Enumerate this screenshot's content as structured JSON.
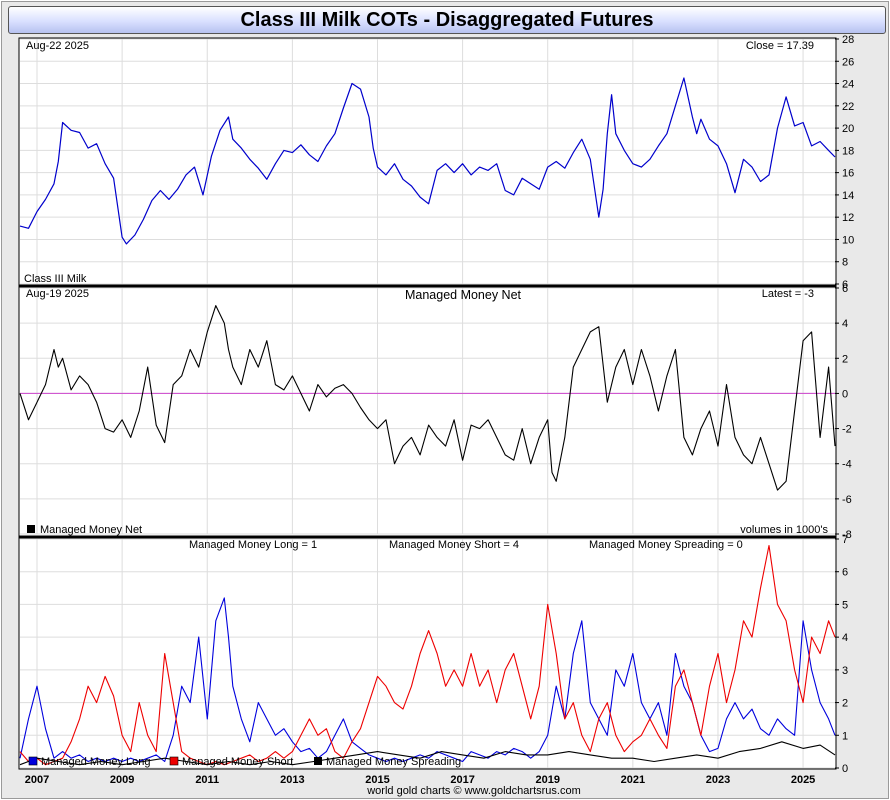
{
  "title": "Class III Milk COTs - Disaggregated Futures",
  "footer": "world gold charts © www.goldchartsrus.com",
  "colors": {
    "long": "#0000dd",
    "short": "#ee0000",
    "spreading": "#000000",
    "price": "#0000cc",
    "net": "#000000",
    "zero_line": "#cc44cc",
    "grid": "#dddddd"
  },
  "x_axis": {
    "labels": [
      "2007",
      "2009",
      "2011",
      "2013",
      "2015",
      "2017",
      "2019",
      "2021",
      "2023",
      "2025"
    ],
    "range": [
      2006.6,
      2025.75
    ]
  },
  "chart_data": [
    {
      "type": "line",
      "name": "price",
      "top_left_label": "Aug-22  2025",
      "top_right_label": "Close = 17.39",
      "legend": "Class III Milk",
      "ylim": [
        6,
        28
      ],
      "yticks": [
        6,
        8,
        10,
        12,
        14,
        16,
        18,
        20,
        22,
        24,
        26,
        28
      ],
      "x": [
        2006.6,
        2006.8,
        2007.0,
        2007.2,
        2007.4,
        2007.5,
        2007.6,
        2007.8,
        2008.0,
        2008.2,
        2008.4,
        2008.6,
        2008.8,
        2009.0,
        2009.1,
        2009.3,
        2009.5,
        2009.7,
        2009.9,
        2010.1,
        2010.3,
        2010.5,
        2010.7,
        2010.9,
        2011.1,
        2011.3,
        2011.5,
        2011.6,
        2011.8,
        2012.0,
        2012.2,
        2012.4,
        2012.6,
        2012.8,
        2013.0,
        2013.2,
        2013.4,
        2013.6,
        2013.8,
        2014.0,
        2014.2,
        2014.4,
        2014.6,
        2014.8,
        2014.9,
        2015.0,
        2015.2,
        2015.4,
        2015.6,
        2015.8,
        2016.0,
        2016.2,
        2016.4,
        2016.6,
        2016.8,
        2017.0,
        2017.2,
        2017.4,
        2017.6,
        2017.8,
        2018.0,
        2018.2,
        2018.4,
        2018.6,
        2018.8,
        2019.0,
        2019.2,
        2019.4,
        2019.6,
        2019.8,
        2020.0,
        2020.2,
        2020.3,
        2020.4,
        2020.5,
        2020.6,
        2020.8,
        2021.0,
        2021.2,
        2021.4,
        2021.6,
        2021.8,
        2022.0,
        2022.2,
        2022.4,
        2022.5,
        2022.6,
        2022.8,
        2023.0,
        2023.2,
        2023.4,
        2023.6,
        2023.8,
        2024.0,
        2024.2,
        2024.4,
        2024.6,
        2024.8,
        2025.0,
        2025.2,
        2025.4,
        2025.6,
        2025.75
      ],
      "values": [
        11.2,
        11.0,
        12.5,
        13.6,
        15.0,
        17.0,
        20.5,
        19.8,
        19.6,
        18.2,
        18.6,
        16.8,
        15.5,
        10.2,
        9.6,
        10.4,
        11.8,
        13.5,
        14.4,
        13.6,
        14.5,
        15.8,
        16.5,
        14.0,
        17.5,
        19.8,
        21.0,
        19.0,
        18.2,
        17.2,
        16.4,
        15.4,
        16.8,
        18.0,
        17.8,
        18.5,
        17.6,
        17.0,
        18.4,
        19.5,
        21.8,
        24.0,
        23.5,
        21.0,
        18.2,
        16.5,
        15.8,
        16.8,
        15.4,
        14.8,
        13.8,
        13.2,
        16.2,
        16.8,
        16.0,
        16.8,
        15.8,
        16.5,
        16.2,
        16.8,
        14.4,
        14.0,
        15.5,
        15.0,
        14.5,
        16.5,
        17.0,
        16.4,
        17.8,
        19.0,
        17.2,
        12.0,
        14.5,
        19.5,
        23.0,
        19.5,
        18.0,
        16.8,
        16.5,
        17.2,
        18.4,
        19.5,
        22.0,
        24.5,
        21.0,
        19.5,
        20.8,
        19.0,
        18.4,
        16.8,
        14.2,
        17.2,
        16.5,
        15.2,
        15.8,
        20.0,
        22.8,
        20.2,
        20.5,
        18.4,
        18.8,
        18.0,
        17.4
      ]
    },
    {
      "type": "line",
      "name": "managed_money_net",
      "title": "Managed Money Net",
      "top_left_label": "Aug-19  2025",
      "top_right_label": "Latest = -3",
      "legend": "Managed Money Net",
      "right_note": "volumes in 1000's",
      "ylim": [
        -8,
        6
      ],
      "yticks": [
        -8,
        -6,
        -4,
        -2,
        0,
        2,
        4,
        6
      ],
      "x": [
        2006.6,
        2006.8,
        2007.0,
        2007.2,
        2007.4,
        2007.5,
        2007.6,
        2007.8,
        2008.0,
        2008.2,
        2008.4,
        2008.6,
        2008.8,
        2009.0,
        2009.2,
        2009.4,
        2009.6,
        2009.8,
        2010.0,
        2010.2,
        2010.4,
        2010.6,
        2010.8,
        2011.0,
        2011.2,
        2011.4,
        2011.5,
        2011.6,
        2011.8,
        2012.0,
        2012.2,
        2012.4,
        2012.6,
        2012.8,
        2013.0,
        2013.2,
        2013.4,
        2013.6,
        2013.8,
        2014.0,
        2014.2,
        2014.4,
        2014.6,
        2014.8,
        2015.0,
        2015.2,
        2015.4,
        2015.6,
        2015.8,
        2016.0,
        2016.2,
        2016.4,
        2016.6,
        2016.8,
        2017.0,
        2017.2,
        2017.4,
        2017.6,
        2017.8,
        2018.0,
        2018.2,
        2018.4,
        2018.6,
        2018.8,
        2019.0,
        2019.1,
        2019.2,
        2019.4,
        2019.6,
        2019.8,
        2020.0,
        2020.2,
        2020.4,
        2020.6,
        2020.8,
        2021.0,
        2021.2,
        2021.4,
        2021.6,
        2021.8,
        2022.0,
        2022.2,
        2022.4,
        2022.6,
        2022.8,
        2023.0,
        2023.2,
        2023.4,
        2023.6,
        2023.8,
        2024.0,
        2024.2,
        2024.4,
        2024.6,
        2024.8,
        2025.0,
        2025.2,
        2025.4,
        2025.6,
        2025.75
      ],
      "values": [
        0,
        -1.5,
        -0.5,
        0.5,
        2.5,
        1.5,
        2.0,
        0.2,
        1.0,
        0.5,
        -0.5,
        -2.0,
        -2.2,
        -1.5,
        -2.5,
        -1.0,
        1.5,
        -1.8,
        -2.8,
        0.5,
        1.0,
        2.5,
        1.5,
        3.5,
        5.0,
        4.0,
        2.5,
        1.5,
        0.5,
        2.5,
        1.5,
        3.0,
        0.5,
        0.2,
        1.0,
        0,
        -1.0,
        0.5,
        -0.2,
        0.3,
        0.5,
        0,
        -0.8,
        -1.5,
        -2.0,
        -1.5,
        -4.0,
        -3.0,
        -2.5,
        -3.5,
        -1.8,
        -2.5,
        -3.0,
        -1.5,
        -3.8,
        -1.8,
        -2.0,
        -1.5,
        -2.5,
        -3.5,
        -3.8,
        -2.0,
        -4.0,
        -2.5,
        -1.5,
        -4.5,
        -5.0,
        -2.5,
        1.5,
        2.5,
        3.5,
        3.8,
        -0.5,
        1.5,
        2.5,
        0.5,
        2.5,
        1.0,
        -1.0,
        1.0,
        2.5,
        -2.5,
        -3.5,
        -2.0,
        -1.0,
        -3.0,
        0.5,
        -2.5,
        -3.5,
        -4.0,
        -2.5,
        -4.0,
        -5.5,
        -5.0,
        -1.0,
        3.0,
        3.5,
        -2.5,
        1.5,
        -3.0
      ]
    },
    {
      "type": "line",
      "name": "positions",
      "header_labels": [
        "Managed Money Long = 1",
        "Managed Money Short = 4",
        "Managed Money Spreading = 0"
      ],
      "ylim": [
        0,
        7
      ],
      "yticks": [
        0,
        1,
        2,
        3,
        4,
        5,
        6,
        7
      ],
      "series": [
        {
          "name": "Managed Money Long",
          "color": "#0000dd",
          "x": [
            2006.6,
            2006.8,
            2007.0,
            2007.2,
            2007.4,
            2007.6,
            2007.8,
            2008.0,
            2008.2,
            2008.4,
            2008.6,
            2008.8,
            2009.0,
            2009.2,
            2009.4,
            2009.6,
            2009.8,
            2010.0,
            2010.2,
            2010.4,
            2010.6,
            2010.8,
            2011.0,
            2011.2,
            2011.4,
            2011.5,
            2011.6,
            2011.8,
            2012.0,
            2012.2,
            2012.4,
            2012.6,
            2012.8,
            2013.0,
            2013.2,
            2013.4,
            2013.6,
            2013.8,
            2014.0,
            2014.2,
            2014.4,
            2014.6,
            2014.8,
            2015.0,
            2015.2,
            2015.4,
            2015.6,
            2015.8,
            2016.0,
            2016.2,
            2016.4,
            2016.6,
            2016.8,
            2017.0,
            2017.2,
            2017.4,
            2017.6,
            2017.8,
            2018.0,
            2018.2,
            2018.4,
            2018.6,
            2018.8,
            2019.0,
            2019.2,
            2019.4,
            2019.6,
            2019.8,
            2020.0,
            2020.2,
            2020.4,
            2020.6,
            2020.8,
            2021.0,
            2021.2,
            2021.4,
            2021.6,
            2021.8,
            2022.0,
            2022.2,
            2022.4,
            2022.6,
            2022.8,
            2023.0,
            2023.2,
            2023.4,
            2023.6,
            2023.8,
            2024.0,
            2024.2,
            2024.4,
            2024.6,
            2024.8,
            2025.0,
            2025.2,
            2025.4,
            2025.6,
            2025.75
          ],
          "values": [
            0.3,
            1.5,
            2.5,
            1.2,
            0.3,
            0.5,
            0.3,
            0.4,
            0.2,
            0.3,
            0.2,
            0.3,
            0.2,
            0.3,
            0.2,
            0.3,
            0.4,
            0.2,
            1.0,
            2.5,
            2.0,
            4.0,
            1.5,
            4.5,
            5.2,
            4.0,
            2.5,
            1.5,
            0.8,
            2.0,
            1.5,
            1.0,
            1.2,
            0.8,
            0.5,
            0.6,
            0.3,
            0.5,
            1.0,
            1.5,
            0.8,
            0.6,
            0.4,
            0.3,
            0.2,
            0.3,
            0.2,
            0.3,
            0.4,
            0.3,
            0.5,
            0.4,
            0.3,
            0.2,
            0.5,
            0.4,
            0.3,
            0.5,
            0.4,
            0.6,
            0.5,
            0.3,
            0.5,
            1.0,
            2.5,
            1.5,
            3.5,
            4.5,
            2.0,
            1.5,
            1.0,
            3.0,
            2.5,
            3.5,
            2.0,
            1.5,
            2.0,
            1.0,
            3.5,
            2.5,
            2.0,
            1.0,
            0.5,
            0.6,
            1.5,
            2.0,
            1.5,
            1.8,
            1.2,
            1.0,
            1.5,
            1.2,
            1.0,
            4.5,
            3.0,
            2.0,
            1.5,
            1.0
          ]
        },
        {
          "name": "Managed Money Short",
          "color": "#ee0000",
          "x": [
            2006.6,
            2006.8,
            2007.0,
            2007.2,
            2007.4,
            2007.6,
            2007.8,
            2008.0,
            2008.2,
            2008.4,
            2008.6,
            2008.8,
            2009.0,
            2009.2,
            2009.4,
            2009.6,
            2009.8,
            2010.0,
            2010.2,
            2010.4,
            2010.6,
            2010.8,
            2011.0,
            2011.2,
            2011.4,
            2011.6,
            2011.8,
            2012.0,
            2012.2,
            2012.4,
            2012.6,
            2012.8,
            2013.0,
            2013.2,
            2013.4,
            2013.6,
            2013.8,
            2014.0,
            2014.2,
            2014.4,
            2014.6,
            2014.8,
            2015.0,
            2015.2,
            2015.4,
            2015.6,
            2015.8,
            2016.0,
            2016.2,
            2016.4,
            2016.6,
            2016.8,
            2017.0,
            2017.2,
            2017.4,
            2017.6,
            2017.8,
            2018.0,
            2018.2,
            2018.4,
            2018.6,
            2018.8,
            2019.0,
            2019.2,
            2019.4,
            2019.6,
            2019.8,
            2020.0,
            2020.2,
            2020.4,
            2020.6,
            2020.8,
            2021.0,
            2021.2,
            2021.4,
            2021.6,
            2021.8,
            2022.0,
            2022.2,
            2022.4,
            2022.6,
            2022.8,
            2023.0,
            2023.2,
            2023.4,
            2023.6,
            2023.8,
            2024.0,
            2024.2,
            2024.4,
            2024.6,
            2024.8,
            2025.0,
            2025.2,
            2025.4,
            2025.6,
            2025.75
          ],
          "values": [
            0.5,
            0.2,
            0.3,
            0.1,
            0.2,
            0.3,
            0.8,
            1.5,
            2.5,
            2.0,
            2.8,
            2.2,
            1.0,
            0.5,
            2.0,
            1.0,
            0.5,
            3.5,
            2.0,
            0.5,
            0.3,
            0.2,
            0.1,
            0.2,
            0.1,
            0.2,
            0.3,
            0.4,
            0.2,
            0.3,
            0.5,
            0.3,
            0.5,
            1.0,
            1.5,
            1.0,
            1.2,
            0.5,
            0.3,
            0.8,
            1.2,
            2.0,
            2.8,
            2.5,
            2.0,
            1.8,
            2.5,
            3.5,
            4.2,
            3.5,
            2.5,
            3.0,
            2.5,
            3.5,
            2.5,
            3.0,
            2.0,
            3.0,
            3.5,
            2.5,
            1.5,
            2.5,
            5.0,
            3.5,
            1.5,
            2.0,
            1.0,
            0.5,
            1.5,
            2.0,
            1.0,
            0.5,
            0.8,
            1.0,
            1.5,
            1.0,
            0.6,
            2.5,
            3.0,
            2.0,
            1.0,
            2.5,
            3.5,
            2.0,
            3.0,
            4.5,
            4.0,
            5.5,
            6.8,
            5.0,
            4.5,
            3.0,
            2.0,
            4.0,
            3.5,
            4.5,
            4.0
          ]
        },
        {
          "name": "Managed Money Spreading",
          "color": "#000000",
          "x": [
            2006.6,
            2007.0,
            2007.5,
            2008.0,
            2008.5,
            2009.0,
            2009.5,
            2010.0,
            2010.5,
            2011.0,
            2011.5,
            2012.0,
            2012.5,
            2013.0,
            2013.5,
            2014.0,
            2014.5,
            2015.0,
            2015.5,
            2016.0,
            2016.5,
            2017.0,
            2017.5,
            2018.0,
            2018.5,
            2019.0,
            2019.5,
            2020.0,
            2020.5,
            2021.0,
            2021.5,
            2022.0,
            2022.5,
            2023.0,
            2023.5,
            2024.0,
            2024.5,
            2025.0,
            2025.4,
            2025.75
          ],
          "values": [
            0.1,
            0.3,
            0.2,
            0.1,
            0.2,
            0.1,
            0.2,
            0.3,
            0.2,
            0.1,
            0.2,
            0.1,
            0.2,
            0.1,
            0.2,
            0.3,
            0.4,
            0.5,
            0.4,
            0.3,
            0.5,
            0.4,
            0.3,
            0.5,
            0.4,
            0.4,
            0.5,
            0.4,
            0.3,
            0.3,
            0.2,
            0.3,
            0.4,
            0.3,
            0.5,
            0.6,
            0.8,
            0.6,
            0.7,
            0.4
          ]
        }
      ]
    }
  ]
}
